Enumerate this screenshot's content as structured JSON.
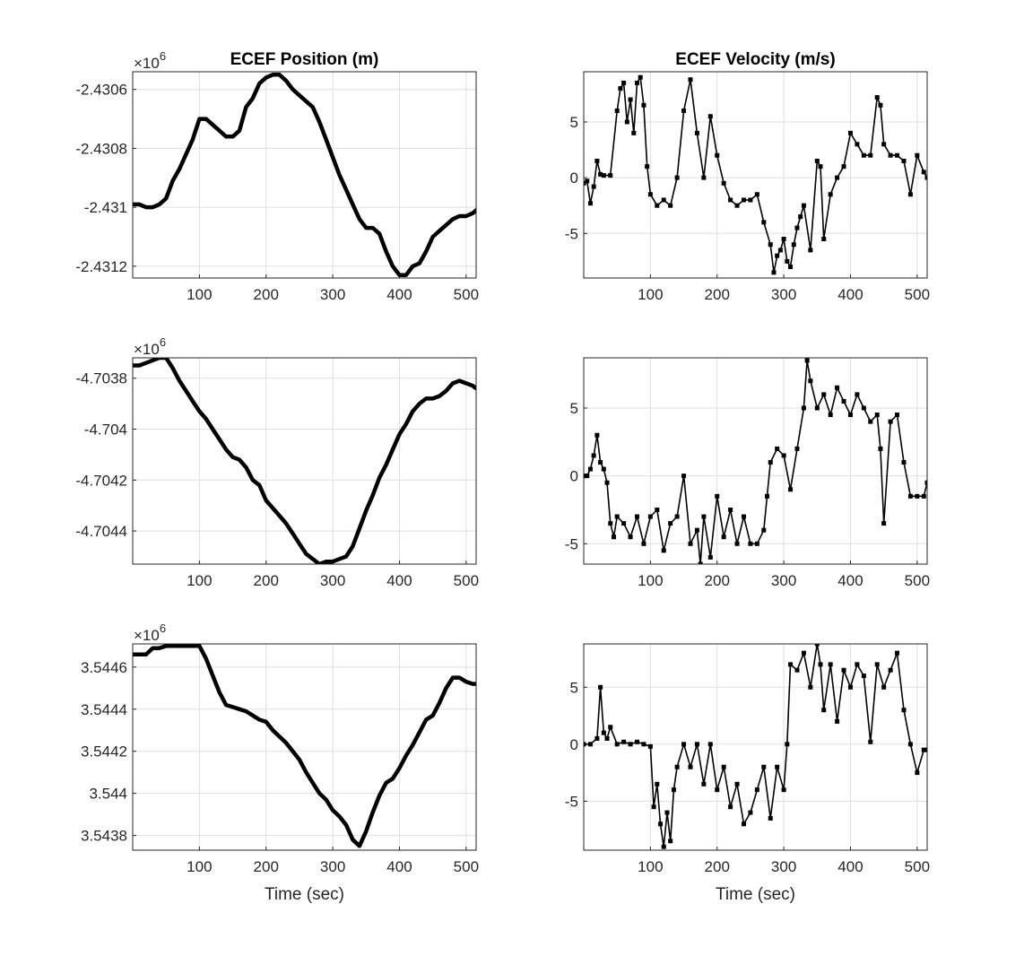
{
  "chart_data": [
    {
      "type": "line",
      "title": "ECEF Position (m)",
      "xlabel": "",
      "ylabel": "",
      "exponent_label": "×10",
      "exponent_power": "6",
      "xlim": [
        0,
        515
      ],
      "ylim": [
        -2.43124,
        -2.43054
      ],
      "xticks": [
        100,
        200,
        300,
        400,
        500
      ],
      "yticks": [
        -2.4306,
        -2.4308,
        -2.431,
        -2.4312
      ],
      "ytick_labels": [
        "-2.4306",
        "-2.4308",
        "-2.431",
        "-2.4312"
      ],
      "grid": true,
      "line_color": "#000000",
      "x": [
        0,
        10,
        20,
        30,
        40,
        50,
        60,
        70,
        80,
        90,
        100,
        110,
        120,
        130,
        140,
        150,
        160,
        170,
        180,
        190,
        200,
        210,
        220,
        230,
        240,
        250,
        260,
        270,
        280,
        290,
        300,
        310,
        320,
        330,
        340,
        350,
        360,
        370,
        380,
        390,
        400,
        410,
        420,
        430,
        440,
        450,
        460,
        470,
        480,
        490,
        500,
        510,
        515
      ],
      "y": [
        -2.43099,
        -2.43099,
        -2.431,
        -2.431,
        -2.43099,
        -2.43097,
        -2.43091,
        -2.43087,
        -2.43082,
        -2.43077,
        -2.4307,
        -2.4307,
        -2.43072,
        -2.43074,
        -2.43076,
        -2.43076,
        -2.43074,
        -2.43066,
        -2.43063,
        -2.43058,
        -2.43056,
        -2.43055,
        -2.43055,
        -2.43057,
        -2.4306,
        -2.43062,
        -2.43064,
        -2.43066,
        -2.43071,
        -2.43077,
        -2.43083,
        -2.43089,
        -2.43094,
        -2.43099,
        -2.43104,
        -2.43107,
        -2.43107,
        -2.43109,
        -2.43115,
        -2.4312,
        -2.43123,
        -2.43123,
        -2.4312,
        -2.43119,
        -2.43115,
        -2.4311,
        -2.43108,
        -2.43106,
        -2.43104,
        -2.43103,
        -2.43103,
        -2.43102,
        -2.43101
      ]
    },
    {
      "type": "line",
      "title": "ECEF Velocity (m/s)",
      "xlabel": "",
      "ylabel": "",
      "xlim": [
        0,
        515
      ],
      "ylim": [
        -9,
        9.5
      ],
      "xticks": [
        100,
        200,
        300,
        400,
        500
      ],
      "yticks": [
        5,
        0,
        -5
      ],
      "ytick_labels": [
        "5",
        "0",
        "-5"
      ],
      "grid": true,
      "line_color": "#000000",
      "marker": "square",
      "x": [
        0,
        5,
        10,
        15,
        20,
        25,
        30,
        40,
        50,
        55,
        60,
        65,
        70,
        75,
        80,
        85,
        90,
        95,
        100,
        110,
        120,
        130,
        140,
        150,
        160,
        170,
        180,
        190,
        200,
        210,
        220,
        230,
        240,
        250,
        260,
        270,
        280,
        285,
        290,
        295,
        300,
        305,
        310,
        315,
        320,
        325,
        330,
        340,
        350,
        355,
        360,
        370,
        380,
        390,
        400,
        410,
        420,
        430,
        440,
        445,
        450,
        460,
        470,
        480,
        490,
        500,
        510,
        515
      ],
      "y": [
        -0.5,
        -0.3,
        -2.3,
        -0.8,
        1.5,
        0.3,
        0.2,
        0.2,
        6,
        8,
        8.5,
        5,
        7,
        4,
        8.5,
        9,
        6.5,
        1,
        -1.5,
        -2.5,
        -2,
        -2.5,
        0,
        6,
        8.8,
        4,
        0,
        5.5,
        2,
        -0.5,
        -2,
        -2.5,
        -2,
        -2,
        -1.5,
        -4,
        -6,
        -8.5,
        -7,
        -6.5,
        -5.5,
        -7.5,
        -8,
        -6,
        -4.5,
        -3.5,
        -2.5,
        -6.5,
        1.5,
        1,
        -5.5,
        -1.5,
        0,
        1,
        4,
        3,
        2,
        2,
        7.2,
        6.5,
        3,
        2,
        2,
        1.5,
        -1.5,
        2,
        0.5,
        0
      ]
    },
    {
      "type": "line",
      "title": "",
      "xlabel": "",
      "ylabel": "",
      "exponent_label": "×10",
      "exponent_power": "6",
      "xlim": [
        0,
        515
      ],
      "ylim": [
        -4.70453,
        -4.70372
      ],
      "xticks": [
        100,
        200,
        300,
        400,
        500
      ],
      "yticks": [
        -4.7038,
        -4.704,
        -4.7042,
        -4.7044
      ],
      "ytick_labels": [
        "-4.7038",
        "-4.704",
        "-4.7042",
        "-4.7044"
      ],
      "grid": true,
      "line_color": "#000000",
      "x": [
        0,
        10,
        20,
        30,
        40,
        50,
        60,
        70,
        80,
        90,
        100,
        110,
        120,
        130,
        140,
        150,
        160,
        170,
        180,
        190,
        200,
        210,
        220,
        230,
        240,
        250,
        260,
        270,
        280,
        290,
        300,
        310,
        320,
        330,
        340,
        350,
        360,
        370,
        380,
        390,
        400,
        410,
        420,
        430,
        440,
        450,
        460,
        470,
        480,
        490,
        500,
        510,
        515
      ],
      "y": [
        -4.70375,
        -4.70375,
        -4.70374,
        -4.70373,
        -4.70372,
        -4.70372,
        -4.70376,
        -4.70381,
        -4.70385,
        -4.70389,
        -4.70393,
        -4.70396,
        -4.704,
        -4.70404,
        -4.70408,
        -4.70411,
        -4.70412,
        -4.70415,
        -4.7042,
        -4.70422,
        -4.70428,
        -4.70431,
        -4.70434,
        -4.70437,
        -4.70441,
        -4.70445,
        -4.70449,
        -4.70451,
        -4.70453,
        -4.70452,
        -4.70452,
        -4.70451,
        -4.7045,
        -4.70446,
        -4.70439,
        -4.70432,
        -4.70426,
        -4.70419,
        -4.70414,
        -4.70408,
        -4.70402,
        -4.70398,
        -4.70393,
        -4.7039,
        -4.70388,
        -4.70388,
        -4.70387,
        -4.70385,
        -4.70382,
        -4.70381,
        -4.70382,
        -4.70383,
        -4.70384
      ]
    },
    {
      "type": "line",
      "title": "",
      "xlabel": "",
      "ylabel": "",
      "xlim": [
        0,
        515
      ],
      "ylim": [
        -6.5,
        8.7
      ],
      "xticks": [
        100,
        200,
        300,
        400,
        500
      ],
      "yticks": [
        5,
        0,
        -5
      ],
      "ytick_labels": [
        "5",
        "0",
        "-5"
      ],
      "grid": true,
      "line_color": "#000000",
      "marker": "square",
      "x": [
        0,
        5,
        10,
        15,
        20,
        25,
        30,
        35,
        40,
        45,
        50,
        60,
        70,
        80,
        90,
        100,
        110,
        120,
        130,
        140,
        150,
        160,
        170,
        175,
        180,
        190,
        200,
        210,
        220,
        230,
        240,
        250,
        260,
        270,
        275,
        280,
        290,
        300,
        310,
        320,
        330,
        335,
        340,
        350,
        360,
        370,
        380,
        390,
        400,
        410,
        420,
        430,
        440,
        445,
        450,
        460,
        470,
        480,
        490,
        500,
        510,
        515
      ],
      "y": [
        0,
        0,
        0.5,
        1.5,
        3,
        1,
        0.5,
        -0.5,
        -3.5,
        -4.5,
        -3,
        -3.5,
        -4.5,
        -3,
        -5,
        -3,
        -2.5,
        -5.5,
        -3.5,
        -3,
        0,
        -5,
        -4,
        -6.5,
        -3,
        -6,
        -1.5,
        -4.5,
        -2.5,
        -5,
        -3,
        -5,
        -5,
        -4,
        -1.5,
        1,
        2,
        1.5,
        -1,
        2,
        5,
        8.5,
        7,
        5,
        6,
        4.5,
        6.5,
        5.5,
        4.5,
        6,
        5,
        4,
        4.5,
        2,
        -3.5,
        4,
        4.5,
        1,
        -1.5,
        -1.5,
        -1.5,
        -0.5
      ]
    },
    {
      "type": "line",
      "title": "",
      "xlabel": "Time (sec)",
      "ylabel": "",
      "exponent_label": "×10",
      "exponent_power": "6",
      "xlim": [
        0,
        515
      ],
      "ylim": [
        3.54373,
        3.54471
      ],
      "xticks": [
        100,
        200,
        300,
        400,
        500
      ],
      "yticks": [
        3.5446,
        3.5444,
        3.5442,
        3.544,
        3.5438
      ],
      "ytick_labels": [
        "3.5446",
        "3.5444",
        "3.5442",
        "3.544",
        "3.5438"
      ],
      "grid": true,
      "line_color": "#000000",
      "x": [
        0,
        10,
        20,
        30,
        40,
        50,
        60,
        70,
        80,
        90,
        100,
        110,
        120,
        130,
        140,
        150,
        160,
        170,
        180,
        190,
        200,
        210,
        220,
        230,
        240,
        250,
        260,
        270,
        280,
        290,
        300,
        310,
        320,
        330,
        340,
        350,
        360,
        370,
        380,
        390,
        400,
        410,
        420,
        430,
        440,
        450,
        460,
        470,
        480,
        490,
        500,
        510,
        515
      ],
      "y": [
        3.54466,
        3.54466,
        3.54466,
        3.54469,
        3.54469,
        3.5447,
        3.5447,
        3.5447,
        3.5447,
        3.5447,
        3.5447,
        3.54464,
        3.54456,
        3.54448,
        3.54442,
        3.54441,
        3.5444,
        3.54439,
        3.54437,
        3.54435,
        3.54434,
        3.5443,
        3.54427,
        3.54424,
        3.5442,
        3.54416,
        3.5441,
        3.54405,
        3.544,
        3.54397,
        3.54392,
        3.54389,
        3.54385,
        3.54378,
        3.54375,
        3.54382,
        3.54391,
        3.54399,
        3.54405,
        3.54407,
        3.54412,
        3.54418,
        3.54423,
        3.54429,
        3.54435,
        3.54437,
        3.54443,
        3.5445,
        3.54455,
        3.54455,
        3.54453,
        3.54452,
        3.54452
      ]
    },
    {
      "type": "line",
      "title": "",
      "xlabel": "Time (sec)",
      "ylabel": "",
      "xlim": [
        0,
        515
      ],
      "ylim": [
        -9.3,
        8.8
      ],
      "xticks": [
        100,
        200,
        300,
        400,
        500
      ],
      "yticks": [
        5,
        0,
        -5
      ],
      "ytick_labels": [
        "5",
        "0",
        "-5"
      ],
      "grid": true,
      "line_color": "#000000",
      "marker": "square",
      "x": [
        0,
        10,
        20,
        25,
        30,
        35,
        40,
        50,
        60,
        70,
        80,
        90,
        100,
        105,
        110,
        115,
        120,
        125,
        130,
        135,
        140,
        150,
        160,
        170,
        180,
        190,
        200,
        210,
        220,
        230,
        240,
        250,
        260,
        270,
        280,
        290,
        300,
        305,
        310,
        320,
        330,
        340,
        350,
        355,
        360,
        370,
        380,
        390,
        400,
        410,
        420,
        430,
        440,
        450,
        460,
        470,
        480,
        490,
        500,
        510,
        515
      ],
      "y": [
        0,
        0,
        0.5,
        5,
        1,
        0.5,
        1.5,
        0,
        0.2,
        0,
        0.2,
        0,
        -0.2,
        -5.5,
        -3.5,
        -7,
        -9,
        -6,
        -8.5,
        -4,
        -2,
        0,
        -2,
        0,
        -3.5,
        0,
        -4,
        -2,
        -5.5,
        -3.5,
        -7,
        -6,
        -4,
        -2,
        -6.5,
        -2,
        -4,
        0,
        7,
        6.5,
        8,
        5,
        8.8,
        7,
        3,
        7,
        2,
        6.5,
        5,
        7,
        6,
        0.2,
        7,
        5,
        6.5,
        8,
        3,
        0,
        -2.5,
        -0.5,
        -0.5
      ]
    }
  ]
}
